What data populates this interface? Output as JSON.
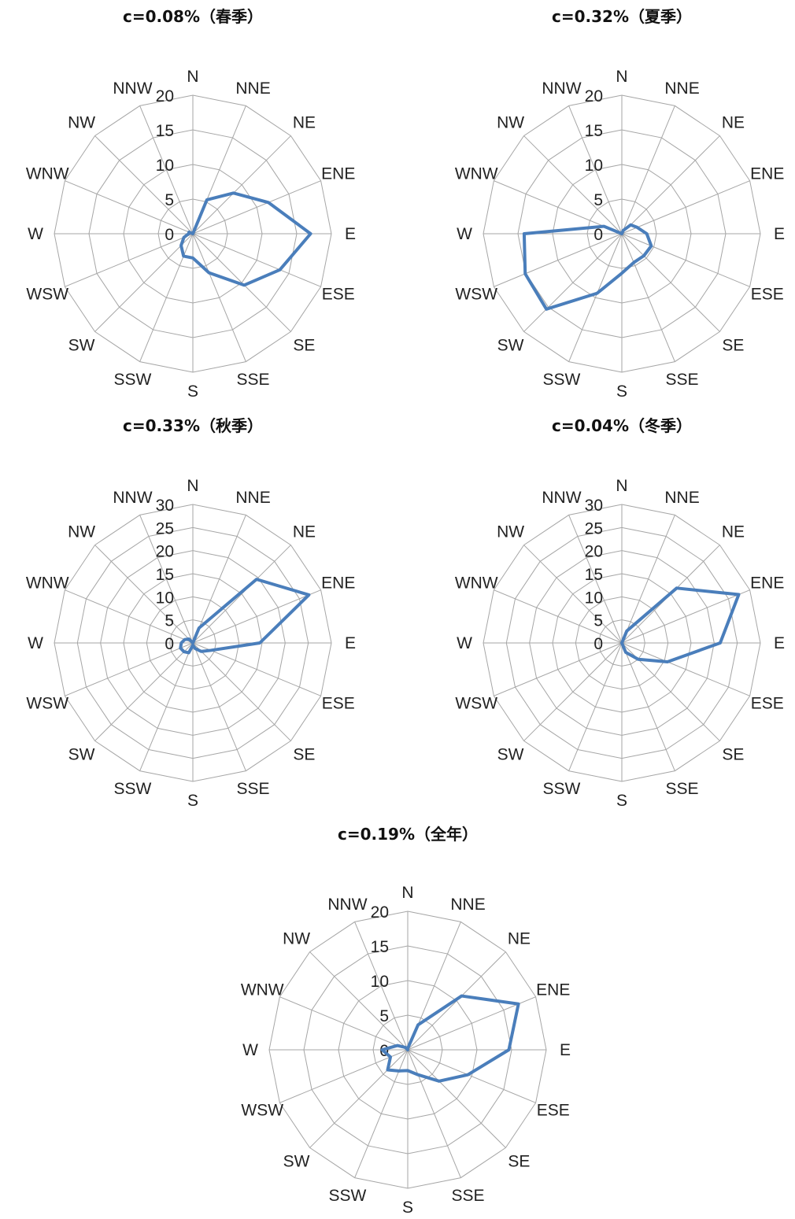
{
  "directions": [
    "N",
    "NNE",
    "NE",
    "ENE",
    "E",
    "ESE",
    "SE",
    "SSE",
    "S",
    "SSW",
    "SW",
    "WSW",
    "W",
    "WNW",
    "NW",
    "NNW"
  ],
  "colors": {
    "series": "#4a7ebb",
    "grid": "#a6a6a6"
  },
  "chart_data": [
    {
      "type": "radar",
      "title": "c=0.08%（春季）",
      "rmax": 20,
      "ticks": [
        0,
        5,
        10,
        15,
        20
      ],
      "values": [
        0,
        5.3,
        8.3,
        11.8,
        17.0,
        13.6,
        10.5,
        6.1,
        3.5,
        3.5,
        2.4,
        1.4,
        0.6,
        0.6,
        0,
        0
      ]
    },
    {
      "type": "radar",
      "title": "c=0.32%（夏季）",
      "rmax": 20,
      "ticks": [
        0,
        5,
        10,
        15,
        20
      ],
      "values": [
        0,
        0.5,
        1.8,
        2.4,
        3.6,
        4.6,
        4.5,
        4.5,
        5.7,
        9.3,
        15.4,
        15.1,
        14.1,
        2.8,
        0,
        0
      ]
    },
    {
      "type": "radar",
      "title": "c=0.33%（秋季）",
      "rmax": 30,
      "ticks": [
        0,
        5,
        10,
        15,
        20,
        25,
        30
      ],
      "values": [
        0,
        3.5,
        19.5,
        27.2,
        14.5,
        4.2,
        2.6,
        1.3,
        0.5,
        2.3,
        2.7,
        2.9,
        2.5,
        1.9,
        1.2,
        0
      ]
    },
    {
      "type": "radar",
      "title": "c=0.04%（冬季）",
      "rmax": 30,
      "ticks": [
        0,
        5,
        10,
        15,
        20,
        25,
        30
      ],
      "values": [
        0,
        2.8,
        16.8,
        27.4,
        21.3,
        10.7,
        5.0,
        2.2,
        0,
        0,
        0,
        0,
        0,
        0,
        0,
        0
      ]
    },
    {
      "type": "radar",
      "title": "c=0.19%（全年）",
      "rmax": 20,
      "ticks": [
        0,
        5,
        10,
        15,
        20
      ],
      "values": [
        0.2,
        3.9,
        11.0,
        17.3,
        14.6,
        9.4,
        6.4,
        3.9,
        3.0,
        3.3,
        4.1,
        2.7,
        3.7,
        1.6,
        0.5,
        0
      ]
    }
  ]
}
